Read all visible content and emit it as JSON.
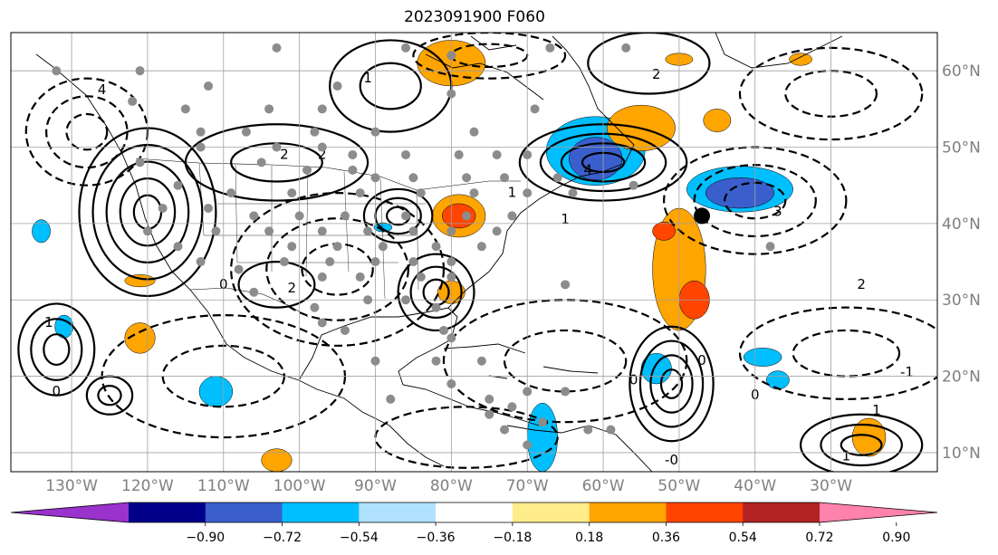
{
  "title": "2023091900 F060",
  "map": {
    "lon_range": [
      -138,
      -16
    ],
    "lat_range": [
      7.5,
      65
    ],
    "lon_ticks": [
      {
        "lon": -130,
        "label": "130°W"
      },
      {
        "lon": -120,
        "label": "120°W"
      },
      {
        "lon": -110,
        "label": "110°W"
      },
      {
        "lon": -100,
        "label": "100°W"
      },
      {
        "lon": -90,
        "label": "90°W"
      },
      {
        "lon": -80,
        "label": "80°W"
      },
      {
        "lon": -70,
        "label": "70°W"
      },
      {
        "lon": -60,
        "label": "60°W"
      },
      {
        "lon": -50,
        "label": "50°W"
      },
      {
        "lon": -40,
        "label": "40°W"
      },
      {
        "lon": -30,
        "label": "30°W"
      }
    ],
    "lat_ticks": [
      {
        "lat": 60,
        "label": "60°N"
      },
      {
        "lat": 50,
        "label": "50°N"
      },
      {
        "lat": 40,
        "label": "40°N"
      },
      {
        "lat": 30,
        "label": "30°N"
      },
      {
        "lat": 20,
        "label": "20°N"
      },
      {
        "lat": 10,
        "label": "10°N"
      }
    ],
    "gridlines": true,
    "marker": {
      "lon": -47,
      "lat": 41,
      "color": "#000000"
    }
  },
  "colorbar": {
    "labels": [
      "−0.90",
      "−0.72",
      "−0.54",
      "−0.36",
      "−0.18",
      "0.18",
      "0.36",
      "0.54",
      "0.72",
      "0.90"
    ],
    "colors": [
      "#9a32cd",
      "#00008b",
      "#3a5fcd",
      "#00bfff",
      "#b0e2ff",
      "#ffffff",
      "#ffec8b",
      "#ffa500",
      "#ff4500",
      "#b22222",
      "#ff82ab"
    ],
    "extend": "both"
  },
  "shading": [
    {
      "lon": -61,
      "lat": 49.5,
      "rx": 6.5,
      "ry": 4.5,
      "color": "#00bfff"
    },
    {
      "lon": -61,
      "lat": 48.5,
      "rx": 3.5,
      "ry": 2.8,
      "color": "#3a5fcd"
    },
    {
      "lon": -42,
      "lat": 44.5,
      "rx": 7,
      "ry": 3,
      "color": "#00bfff"
    },
    {
      "lon": -42,
      "lat": 44,
      "rx": 4.5,
      "ry": 2,
      "color": "#3a5fcd"
    },
    {
      "lon": -55,
      "lat": 52.5,
      "rx": 4.5,
      "ry": 3,
      "color": "#ffa500"
    },
    {
      "lon": -80,
      "lat": 61,
      "rx": 4.5,
      "ry": 3,
      "color": "#ffa500"
    },
    {
      "lon": -79,
      "lat": 41,
      "rx": 3.5,
      "ry": 2.8,
      "color": "#ffa500"
    },
    {
      "lon": -79,
      "lat": 41,
      "rx": 2.2,
      "ry": 1.6,
      "color": "#ff4500"
    },
    {
      "lon": -50,
      "lat": 34,
      "rx": 3.5,
      "ry": 8,
      "color": "#ffa500"
    },
    {
      "lon": -48,
      "lat": 30,
      "rx": 2,
      "ry": 2.5,
      "color": "#ff4500"
    },
    {
      "lon": -52,
      "lat": 39,
      "rx": 1.5,
      "ry": 1.2,
      "color": "#ff4500"
    },
    {
      "lon": -68,
      "lat": 12,
      "rx": 2,
      "ry": 4.5,
      "color": "#00bfff"
    },
    {
      "lon": -53,
      "lat": 21,
      "rx": 2,
      "ry": 2,
      "color": "#00bfff"
    },
    {
      "lon": -25,
      "lat": 12,
      "rx": 2.2,
      "ry": 2.5,
      "color": "#ffa500"
    },
    {
      "lon": -111,
      "lat": 18,
      "rx": 2.2,
      "ry": 2,
      "color": "#00bfff"
    },
    {
      "lon": -103,
      "lat": 9,
      "rx": 2,
      "ry": 1.5,
      "color": "#ffa500"
    },
    {
      "lon": -134,
      "lat": 39,
      "rx": 1.2,
      "ry": 1.5,
      "color": "#00bfff"
    },
    {
      "lon": -131,
      "lat": 26.5,
      "rx": 1.2,
      "ry": 1.5,
      "color": "#00bfff"
    },
    {
      "lon": -121,
      "lat": 25,
      "rx": 2,
      "ry": 2,
      "color": "#ffa500"
    },
    {
      "lon": -39,
      "lat": 22.5,
      "rx": 2.5,
      "ry": 1.2,
      "color": "#00bfff"
    },
    {
      "lon": -37,
      "lat": 19.5,
      "rx": 1.5,
      "ry": 1.2,
      "color": "#00bfff"
    },
    {
      "lon": -45,
      "lat": 53.5,
      "rx": 1.8,
      "ry": 1.5,
      "color": "#ffa500"
    },
    {
      "lon": -34,
      "lat": 61.5,
      "rx": 1.5,
      "ry": 0.8,
      "color": "#ffa500"
    },
    {
      "lon": -50,
      "lat": 61.5,
      "rx": 1.8,
      "ry": 0.8,
      "color": "#ffa500"
    },
    {
      "lon": -80,
      "lat": 31,
      "rx": 1.8,
      "ry": 1.5,
      "color": "#ffa500"
    },
    {
      "lon": -121,
      "lat": 32.5,
      "rx": 2,
      "ry": 0.8,
      "color": "#ffa500"
    },
    {
      "lon": -89,
      "lat": 39.5,
      "rx": 1.2,
      "ry": 0.6,
      "color": "#00bfff"
    }
  ],
  "contour_labels": [
    {
      "lon": -126,
      "lat": 57.5,
      "text": "4"
    },
    {
      "lon": -102,
      "lat": 49,
      "text": "2"
    },
    {
      "lon": -97,
      "lat": 49,
      "text": "2"
    },
    {
      "lon": -91,
      "lat": 59,
      "text": "1"
    },
    {
      "lon": -53,
      "lat": 59.5,
      "text": "2"
    },
    {
      "lon": -62,
      "lat": 47,
      "text": "4"
    },
    {
      "lon": -26,
      "lat": 32,
      "text": "2"
    },
    {
      "lon": -20,
      "lat": 20.5,
      "text": "-1"
    },
    {
      "lon": -37,
      "lat": 41.5,
      "text": "3"
    },
    {
      "lon": -72,
      "lat": 44,
      "text": "1"
    },
    {
      "lon": -65,
      "lat": 40.5,
      "text": "1"
    },
    {
      "lon": -101,
      "lat": 31.5,
      "text": "2"
    },
    {
      "lon": -28,
      "lat": 9.5,
      "text": "1"
    },
    {
      "lon": -51,
      "lat": 9,
      "text": "-0"
    },
    {
      "lon": -132,
      "lat": 18,
      "text": "0"
    },
    {
      "lon": -133,
      "lat": 27,
      "text": "1"
    },
    {
      "lon": -110,
      "lat": 32,
      "text": "0"
    },
    {
      "lon": -40,
      "lat": 17.5,
      "text": "0"
    },
    {
      "lon": -24,
      "lat": 15.5,
      "text": "1"
    },
    {
      "lon": -47,
      "lat": 22,
      "text": "0"
    },
    {
      "lon": -56,
      "lat": 19.5,
      "text": "0"
    }
  ],
  "centers": [
    {
      "lon": -120,
      "lat": 41.5,
      "rx": 9,
      "ry": 11,
      "levels": 5,
      "style": "solid"
    },
    {
      "lon": -60,
      "lat": 48,
      "rx": 11,
      "ry": 5,
      "levels": 4,
      "style": "solid"
    },
    {
      "lon": -87,
      "lat": 41,
      "rx": 4.5,
      "ry": 3.5,
      "levels": 3,
      "style": "solid"
    },
    {
      "lon": -82,
      "lat": 31,
      "rx": 5,
      "ry": 5,
      "levels": 3,
      "style": "solid"
    },
    {
      "lon": -51,
      "lat": 19,
      "rx": 5.5,
      "ry": 7.5,
      "levels": 4,
      "style": "solid"
    },
    {
      "lon": -125,
      "lat": 17.5,
      "rx": 3,
      "ry": 2.5,
      "levels": 2,
      "style": "solid"
    },
    {
      "lon": -132,
      "lat": 23.5,
      "rx": 5,
      "ry": 6,
      "levels": 3,
      "style": "solid"
    },
    {
      "lon": -26,
      "lat": 11,
      "rx": 8,
      "ry": 4,
      "levels": 3,
      "style": "solid"
    },
    {
      "lon": -88,
      "lat": 58,
      "rx": 8,
      "ry": 6,
      "levels": 2,
      "style": "solid"
    },
    {
      "lon": -54,
      "lat": 61,
      "rx": 8,
      "ry": 4,
      "levels": 1,
      "style": "solid"
    },
    {
      "lon": -103,
      "lat": 48,
      "rx": 12,
      "ry": 5,
      "levels": 2,
      "style": "solid"
    },
    {
      "lon": -103,
      "lat": 32,
      "rx": 5,
      "ry": 3,
      "levels": 1,
      "style": "solid"
    },
    {
      "lon": -40,
      "lat": 43,
      "rx": 12,
      "ry": 7,
      "levels": 3,
      "style": "dashed"
    },
    {
      "lon": -95,
      "lat": 34,
      "rx": 14,
      "ry": 10,
      "levels": 3,
      "style": "dashed"
    },
    {
      "lon": -128,
      "lat": 52,
      "rx": 8,
      "ry": 7,
      "levels": 3,
      "style": "dashed"
    },
    {
      "lon": -75,
      "lat": 62,
      "rx": 10,
      "ry": 3,
      "levels": 2,
      "style": "dashed"
    },
    {
      "lon": -65,
      "lat": 22,
      "rx": 16,
      "ry": 8,
      "levels": 2,
      "style": "dashed"
    },
    {
      "lon": -110,
      "lat": 20,
      "rx": 16,
      "ry": 8,
      "levels": 2,
      "style": "dashed"
    },
    {
      "lon": -28,
      "lat": 23,
      "rx": 14,
      "ry": 6,
      "levels": 2,
      "style": "dashed"
    },
    {
      "lon": -78,
      "lat": 12,
      "rx": 12,
      "ry": 4,
      "levels": 1,
      "style": "dashed"
    },
    {
      "lon": -30,
      "lat": 57,
      "rx": 12,
      "ry": 6,
      "levels": 2,
      "style": "dashed"
    }
  ],
  "stations": [
    [
      -103,
      63
    ],
    [
      -86,
      63
    ],
    [
      -80,
      62
    ],
    [
      -67,
      63
    ],
    [
      -57,
      63
    ],
    [
      -121,
      60
    ],
    [
      -132,
      60
    ],
    [
      -112,
      58
    ],
    [
      -95,
      58
    ],
    [
      -80,
      57
    ],
    [
      -122,
      56
    ],
    [
      -115,
      55
    ],
    [
      -104,
      55
    ],
    [
      -97,
      55
    ],
    [
      -69,
      55
    ],
    [
      -113,
      52
    ],
    [
      -107,
      52
    ],
    [
      -98,
      52
    ],
    [
      -90,
      52
    ],
    [
      -77,
      52
    ],
    [
      -113,
      50
    ],
    [
      -103,
      50
    ],
    [
      -97,
      50
    ],
    [
      -93,
      49
    ],
    [
      -86,
      49
    ],
    [
      -79,
      49
    ],
    [
      -74,
      49
    ],
    [
      -70,
      49
    ],
    [
      -121,
      48
    ],
    [
      -105,
      48
    ],
    [
      -99,
      47
    ],
    [
      -93,
      47
    ],
    [
      -90,
      46
    ],
    [
      -85,
      46
    ],
    [
      -78,
      46
    ],
    [
      -73,
      46
    ],
    [
      -66,
      46
    ],
    [
      -56,
      45
    ],
    [
      -116,
      45
    ],
    [
      -109,
      44
    ],
    [
      -101,
      44
    ],
    [
      -92,
      44
    ],
    [
      -84,
      44
    ],
    [
      -77,
      44
    ],
    [
      -70,
      44
    ],
    [
      -64,
      44
    ],
    [
      -118,
      42
    ],
    [
      -112,
      42
    ],
    [
      -106,
      41
    ],
    [
      -100,
      41
    ],
    [
      -94,
      41
    ],
    [
      -86,
      41
    ],
    [
      -78,
      41
    ],
    [
      -72,
      41
    ],
    [
      -120,
      39
    ],
    [
      -111,
      39
    ],
    [
      -104,
      39
    ],
    [
      -97,
      39
    ],
    [
      -91,
      39
    ],
    [
      -85,
      39
    ],
    [
      -80,
      39
    ],
    [
      -74,
      39
    ],
    [
      -116,
      37
    ],
    [
      -101,
      37
    ],
    [
      -95,
      37
    ],
    [
      -89,
      37
    ],
    [
      -82,
      37
    ],
    [
      -76,
      37
    ],
    [
      -113,
      35
    ],
    [
      -102,
      35
    ],
    [
      -96,
      35
    ],
    [
      -90,
      35
    ],
    [
      -85,
      35
    ],
    [
      -80,
      35
    ],
    [
      -108,
      34
    ],
    [
      -97,
      33
    ],
    [
      -92,
      33
    ],
    [
      -84,
      33
    ],
    [
      -80,
      33
    ],
    [
      -106,
      31
    ],
    [
      -98,
      29
    ],
    [
      -91,
      30
    ],
    [
      -86,
      30
    ],
    [
      -82,
      29
    ],
    [
      -97,
      27
    ],
    [
      -81,
      26
    ],
    [
      -80,
      25
    ],
    [
      -82,
      22
    ],
    [
      -76,
      22
    ],
    [
      -80,
      19
    ],
    [
      -70,
      18
    ],
    [
      -65,
      18
    ],
    [
      -62,
      13
    ],
    [
      -59,
      13
    ],
    [
      -75,
      17
    ],
    [
      -72,
      16
    ],
    [
      -75,
      15
    ],
    [
      -68,
      14
    ],
    [
      -73,
      13
    ],
    [
      -70,
      11
    ],
    [
      -65,
      32
    ],
    [
      -38,
      37
    ],
    [
      -94,
      26
    ],
    [
      -90,
      22
    ],
    [
      -88,
      17
    ]
  ]
}
